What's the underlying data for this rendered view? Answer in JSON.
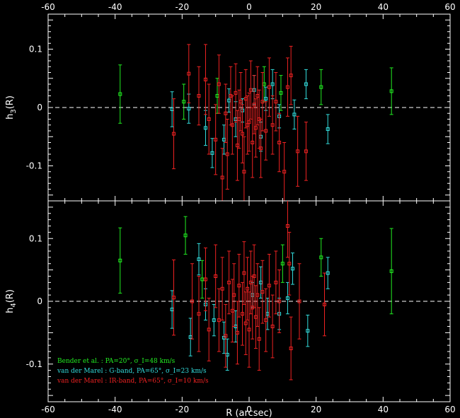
{
  "chart_data": [
    {
      "type": "scatter",
      "panel": "top",
      "ylabel_base": "h",
      "ylabel_sub": "3",
      "ylabel_tail": "(R)",
      "xlim": [
        -60,
        60
      ],
      "ylim": [
        -0.16,
        0.16
      ],
      "xticks": [
        -60,
        -40,
        -20,
        0,
        20,
        40,
        60
      ],
      "yticks": [
        -0.1,
        0,
        0.1
      ],
      "ytick_labels": [
        "-0.1",
        "0",
        "0.1"
      ],
      "reference_line": 0,
      "series": [
        {
          "color": "#22ee22",
          "points": [
            {
              "x": -38.5,
              "y": 0.023,
              "err": 0.05
            },
            {
              "x": -19.5,
              "y": 0.01,
              "err": 0.03
            },
            {
              "x": -9.5,
              "y": 0.02,
              "err": 0.03
            },
            {
              "x": 4.5,
              "y": 0.04,
              "err": 0.03
            },
            {
              "x": 9.5,
              "y": 0.025,
              "err": 0.03
            },
            {
              "x": 21.5,
              "y": 0.035,
              "err": 0.03
            },
            {
              "x": 42.5,
              "y": 0.028,
              "err": 0.04
            }
          ]
        },
        {
          "color": "#33dddd",
          "points": [
            {
              "x": -23,
              "y": -0.003,
              "err": 0.03
            },
            {
              "x": -18,
              "y": -0.002,
              "err": 0.025
            },
            {
              "x": -13,
              "y": -0.035,
              "err": 0.03
            },
            {
              "x": -11,
              "y": -0.078,
              "err": 0.025
            },
            {
              "x": -7.5,
              "y": -0.055,
              "err": 0.025
            },
            {
              "x": -6,
              "y": 0.012,
              "err": 0.02
            },
            {
              "x": -4,
              "y": -0.02,
              "err": 0.03
            },
            {
              "x": -2,
              "y": -0.005,
              "err": 0.02
            },
            {
              "x": 1.5,
              "y": 0.03,
              "err": 0.025
            },
            {
              "x": 3.5,
              "y": -0.05,
              "err": 0.025
            },
            {
              "x": 5,
              "y": 0.015,
              "err": 0.02
            },
            {
              "x": 7,
              "y": 0.04,
              "err": 0.025
            },
            {
              "x": 9,
              "y": -0.015,
              "err": 0.02
            },
            {
              "x": 13.5,
              "y": -0.012,
              "err": 0.025
            },
            {
              "x": 17,
              "y": 0.04,
              "err": 0.025
            },
            {
              "x": 23.5,
              "y": -0.037,
              "err": 0.025
            }
          ]
        },
        {
          "color": "#ee2222",
          "points": [
            {
              "x": -22.5,
              "y": -0.045,
              "err": 0.06
            },
            {
              "x": -18,
              "y": 0.058,
              "err": 0.05
            },
            {
              "x": -15,
              "y": 0.02,
              "err": 0.05
            },
            {
              "x": -13,
              "y": 0.048,
              "err": 0.06
            },
            {
              "x": -12,
              "y": -0.02,
              "err": 0.06
            },
            {
              "x": -10,
              "y": -0.055,
              "err": 0.06
            },
            {
              "x": -9,
              "y": 0.04,
              "err": 0.05
            },
            {
              "x": -8,
              "y": -0.12,
              "err": 0.05
            },
            {
              "x": -7,
              "y": -0.01,
              "err": 0.05
            },
            {
              "x": -6.5,
              "y": -0.08,
              "err": 0.06
            },
            {
              "x": -5.5,
              "y": 0.02,
              "err": 0.05
            },
            {
              "x": -5,
              "y": -0.03,
              "err": 0.05
            },
            {
              "x": -4,
              "y": 0.025,
              "err": 0.05
            },
            {
              "x": -3.5,
              "y": -0.065,
              "err": 0.06
            },
            {
              "x": -3,
              "y": -0.02,
              "err": 0.05
            },
            {
              "x": -2.5,
              "y": 0.01,
              "err": 0.05
            },
            {
              "x": -2,
              "y": -0.045,
              "err": 0.05
            },
            {
              "x": -1.5,
              "y": -0.11,
              "err": 0.06
            },
            {
              "x": -1,
              "y": 0.015,
              "err": 0.05
            },
            {
              "x": -0.5,
              "y": -0.03,
              "err": 0.05
            },
            {
              "x": 0,
              "y": -0.025,
              "err": 0.05
            },
            {
              "x": 0.5,
              "y": 0.03,
              "err": 0.05
            },
            {
              "x": 1,
              "y": -0.06,
              "err": 0.06
            },
            {
              "x": 1.5,
              "y": 0.005,
              "err": 0.05
            },
            {
              "x": 2,
              "y": -0.035,
              "err": 0.05
            },
            {
              "x": 2.5,
              "y": 0.02,
              "err": 0.05
            },
            {
              "x": 3,
              "y": -0.02,
              "err": 0.05
            },
            {
              "x": 3.5,
              "y": -0.07,
              "err": 0.05
            },
            {
              "x": 4,
              "y": 0.01,
              "err": 0.05
            },
            {
              "x": 5,
              "y": -0.04,
              "err": 0.05
            },
            {
              "x": 6,
              "y": 0.035,
              "err": 0.05
            },
            {
              "x": 7,
              "y": -0.03,
              "err": 0.05
            },
            {
              "x": 8,
              "y": 0.01,
              "err": 0.05
            },
            {
              "x": 9,
              "y": -0.06,
              "err": 0.05
            },
            {
              "x": 10.5,
              "y": -0.11,
              "err": 0.05
            },
            {
              "x": 11.5,
              "y": 0.035,
              "err": 0.05
            },
            {
              "x": 12.5,
              "y": 0.055,
              "err": 0.05
            },
            {
              "x": 14.5,
              "y": -0.075,
              "err": 0.06
            },
            {
              "x": 17,
              "y": -0.075,
              "err": 0.05
            }
          ]
        }
      ]
    },
    {
      "type": "scatter",
      "panel": "bottom",
      "ylabel_base": "h",
      "ylabel_sub": "4",
      "ylabel_tail": "(R)",
      "xlabel": "R (arcsec)",
      "xlim": [
        -60,
        60
      ],
      "ylim": [
        -0.16,
        0.16
      ],
      "xticks": [
        -60,
        -40,
        -20,
        0,
        20,
        40,
        60
      ],
      "yticks": [
        -0.1,
        0,
        0.1
      ],
      "ytick_labels": [
        "-0.1",
        "0",
        "0.1"
      ],
      "reference_line": 0,
      "series": [
        {
          "color": "#22ee22",
          "points": [
            {
              "x": -38.5,
              "y": 0.065,
              "err": 0.052
            },
            {
              "x": -19,
              "y": 0.105,
              "err": 0.03
            },
            {
              "x": -14,
              "y": 0.035,
              "err": 0.03
            },
            {
              "x": 10,
              "y": 0.06,
              "err": 0.03
            },
            {
              "x": 21.5,
              "y": 0.07,
              "err": 0.03
            },
            {
              "x": 42.5,
              "y": 0.048,
              "err": 0.068
            }
          ]
        },
        {
          "color": "#33dddd",
          "points": [
            {
              "x": -23,
              "y": -0.013,
              "err": 0.03
            },
            {
              "x": -17.5,
              "y": -0.057,
              "err": 0.03
            },
            {
              "x": -15,
              "y": 0.067,
              "err": 0.025
            },
            {
              "x": -13,
              "y": -0.005,
              "err": 0.025
            },
            {
              "x": -10.5,
              "y": -0.03,
              "err": 0.025
            },
            {
              "x": -7.5,
              "y": -0.058,
              "err": 0.025
            },
            {
              "x": -6.5,
              "y": -0.085,
              "err": 0.025
            },
            {
              "x": -4,
              "y": -0.04,
              "err": 0.025
            },
            {
              "x": 1,
              "y": 0.01,
              "err": 0.02
            },
            {
              "x": 3.5,
              "y": 0.03,
              "err": 0.025
            },
            {
              "x": 5.5,
              "y": -0.02,
              "err": 0.025
            },
            {
              "x": 9,
              "y": -0.02,
              "err": 0.025
            },
            {
              "x": 11.5,
              "y": 0.005,
              "err": 0.025
            },
            {
              "x": 13,
              "y": 0.052,
              "err": 0.025
            },
            {
              "x": 17.5,
              "y": -0.047,
              "err": 0.025
            },
            {
              "x": 23.5,
              "y": 0.045,
              "err": 0.025
            }
          ]
        },
        {
          "color": "#ee2222",
          "points": [
            {
              "x": -22.5,
              "y": 0.006,
              "err": 0.06
            },
            {
              "x": -17,
              "y": 0.0,
              "err": 0.06
            },
            {
              "x": -15,
              "y": -0.02,
              "err": 0.06
            },
            {
              "x": -13,
              "y": 0.035,
              "err": 0.05
            },
            {
              "x": -12,
              "y": -0.045,
              "err": 0.05
            },
            {
              "x": -10,
              "y": 0.04,
              "err": 0.05
            },
            {
              "x": -9,
              "y": -0.03,
              "err": 0.05
            },
            {
              "x": -8,
              "y": 0.02,
              "err": 0.05
            },
            {
              "x": -7,
              "y": -0.055,
              "err": 0.05
            },
            {
              "x": -6,
              "y": 0.03,
              "err": 0.05
            },
            {
              "x": -5,
              "y": -0.015,
              "err": 0.05
            },
            {
              "x": -4.5,
              "y": 0.01,
              "err": 0.05
            },
            {
              "x": -3.5,
              "y": -0.05,
              "err": 0.05
            },
            {
              "x": -3,
              "y": 0.025,
              "err": 0.05
            },
            {
              "x": -2,
              "y": -0.02,
              "err": 0.05
            },
            {
              "x": -1.5,
              "y": 0.045,
              "err": 0.05
            },
            {
              "x": -1,
              "y": -0.035,
              "err": 0.05
            },
            {
              "x": -0.5,
              "y": 0.02,
              "err": 0.05
            },
            {
              "x": 0,
              "y": -0.045,
              "err": 0.06
            },
            {
              "x": 0.5,
              "y": 0.03,
              "err": 0.05
            },
            {
              "x": 1,
              "y": -0.01,
              "err": 0.05
            },
            {
              "x": 1.5,
              "y": 0.04,
              "err": 0.05
            },
            {
              "x": 2,
              "y": -0.025,
              "err": 0.05
            },
            {
              "x": 2.5,
              "y": 0.01,
              "err": 0.05
            },
            {
              "x": 3,
              "y": -0.06,
              "err": 0.05
            },
            {
              "x": 4,
              "y": 0.015,
              "err": 0.05
            },
            {
              "x": 5,
              "y": -0.03,
              "err": 0.05
            },
            {
              "x": 6,
              "y": 0.025,
              "err": 0.05
            },
            {
              "x": 7,
              "y": -0.04,
              "err": 0.05
            },
            {
              "x": 8,
              "y": 0.03,
              "err": 0.05
            },
            {
              "x": 9,
              "y": 0.0,
              "err": 0.05
            },
            {
              "x": 11.5,
              "y": 0.12,
              "err": 0.05
            },
            {
              "x": 12,
              "y": 0.06,
              "err": 0.05
            },
            {
              "x": 12.5,
              "y": -0.075,
              "err": 0.05
            },
            {
              "x": 15,
              "y": 0.0,
              "err": 0.06
            },
            {
              "x": 22.5,
              "y": -0.005,
              "err": 0.05
            }
          ]
        }
      ],
      "legend": [
        {
          "label": "Bender et al. : PA=20°, σ_I=48 km/s",
          "color": "#22ee22"
        },
        {
          "label": "van der Marel : G-band, PA=65°, σ_I=23 km/s",
          "color": "#33dddd"
        },
        {
          "label": "van der Marel : IR-band, PA=65°, σ_I=10 km/s",
          "color": "#ee2222"
        }
      ]
    }
  ]
}
